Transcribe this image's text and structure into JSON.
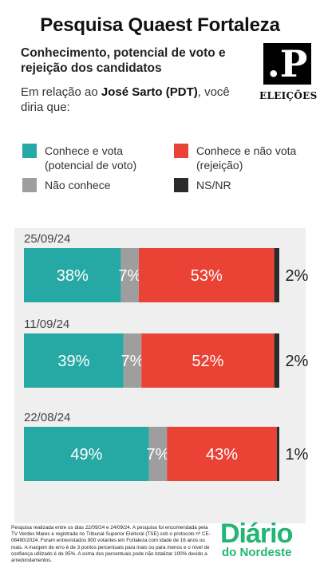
{
  "header": {
    "title": "Pesquisa Quaest Fortaleza",
    "subtitle": "Conhecimento, potencial de voto e rejeição dos candidatos",
    "question_prefix": "Em relação ao ",
    "question_candidate": "José Sarto (PDT)",
    "question_suffix": ", você diria que:"
  },
  "logo": {
    "mark": ".P",
    "label": "ELEIÇÕES"
  },
  "legend": [
    {
      "label": "Conhece e vota (potencial de voto)",
      "color": "#26a9a5"
    },
    {
      "label": "Conhece e não vota (rejeição)",
      "color": "#ea4335"
    },
    {
      "label": "Não conhece",
      "color": "#9e9e9e"
    },
    {
      "label": "NS/NR",
      "color": "#2b2b2b"
    }
  ],
  "chart_data": {
    "type": "bar",
    "orientation": "horizontal-stacked",
    "categories": [
      "25/09/24",
      "11/09/24",
      "22/08/24"
    ],
    "series": [
      {
        "name": "Conhece e vota (potencial de voto)",
        "color": "#26a9a5",
        "values": [
          38,
          39,
          49
        ]
      },
      {
        "name": "Não conhece",
        "color": "#9e9e9e",
        "values": [
          7,
          7,
          7
        ]
      },
      {
        "name": "Conhece e não vota (rejeição)",
        "color": "#ea4335",
        "values": [
          53,
          52,
          43
        ]
      },
      {
        "name": "NS/NR",
        "color": "#2b2b2b",
        "values": [
          2,
          2,
          1
        ]
      }
    ],
    "value_suffix": "%"
  },
  "footnote": "Pesquisa realizada entre os dias 22/09/24 e 24/09/24. A pesquisa foi encomendada pela TV Verdes Mares e registrada no Tribunal Superior Eleitoral (TSE) sob o protocolo nº CE-08490/2024. Foram entrevistados 900 votantes em Fortaleza com idade de 16 anos ou mais. A margem de erro é de 3 pontos percentuais para mais ou para menos e o nível de confiança utilizado é de 95%. A soma dos percentuais pode não totalizar 100% devido a arredondamentos.",
  "brand": {
    "name": "Diário",
    "sub": "do Nordeste"
  }
}
